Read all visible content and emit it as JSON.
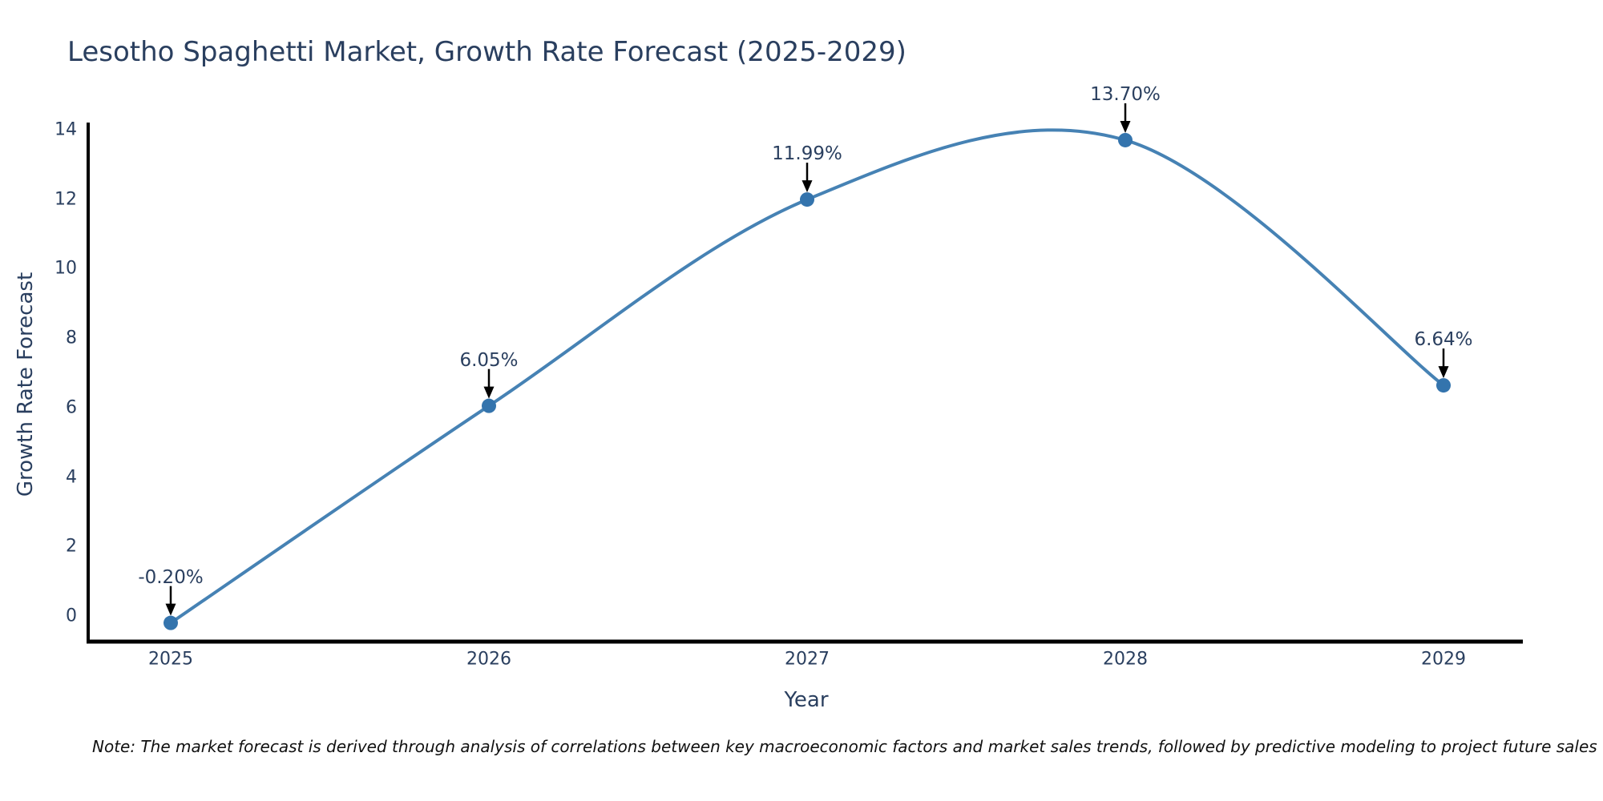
{
  "note": "Note: The market forecast is derived through analysis of correlations between key macroeconomic factors and market sales trends, followed by predictive modeling to project future sales",
  "chart_data": {
    "type": "line",
    "title": "Lesotho Spaghetti Market, Growth Rate Forecast (2025-2029)",
    "xlabel": "Year",
    "ylabel": "Growth Rate Forecast",
    "x": [
      "2025",
      "2026",
      "2027",
      "2028",
      "2029"
    ],
    "series": [
      {
        "name": "Growth Rate Forecast",
        "values": [
          -0.2,
          6.05,
          11.99,
          13.7,
          6.64
        ],
        "point_labels": [
          "-0.20%",
          "6.05%",
          "11.99%",
          "13.70%",
          "6.64%"
        ]
      }
    ],
    "y_ticks": [
      0,
      2,
      4,
      6,
      8,
      10,
      12,
      14
    ],
    "ylim": [
      -0.75,
      14.15
    ],
    "line_shape": "spline",
    "grid": false,
    "legend": "none",
    "markers": true,
    "annotations_arrows": true,
    "colors": {
      "line": "#4682b4",
      "marker": "#3474ad",
      "arrow": "#000000",
      "axis": "#000000",
      "text": "#2a3f5f"
    }
  }
}
